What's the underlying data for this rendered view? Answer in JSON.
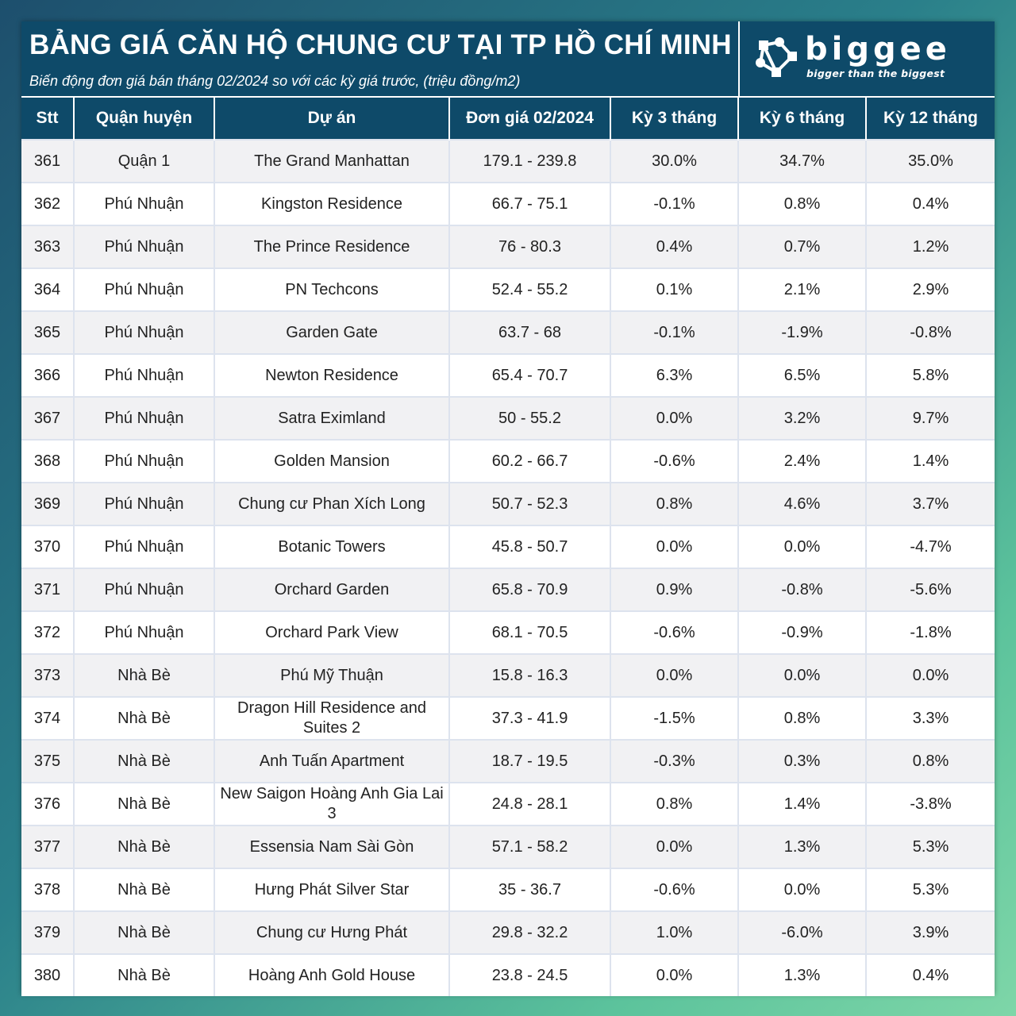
{
  "header": {
    "title": "BẢNG GIÁ CĂN HỘ CHUNG CƯ TẠI TP HỒ CHÍ MINH",
    "subtitle": "Biến động đơn giá bán tháng 02/2024 so với các kỳ giá trước, (triệu đồng/m2)"
  },
  "brand": {
    "name": "biggee",
    "tagline": "bigger than the biggest",
    "logo_icon": "network-nodes-icon"
  },
  "colors": {
    "header_bg": "#0e4a69",
    "positive": "#1aa34a",
    "negative": "#d0141a",
    "zero": "#8c8c8c"
  },
  "table": {
    "columns": [
      "Stt",
      "Quận huyện",
      "Dự án",
      "Đơn giá 02/2024",
      "Kỳ 3 tháng",
      "Kỳ 6 tháng",
      "Kỳ 12 tháng"
    ],
    "rows": [
      [
        "361",
        "Quận 1",
        "The Grand Manhattan",
        "179.1 - 239.8",
        "30.0%",
        "34.7%",
        "35.0%"
      ],
      [
        "362",
        "Phú Nhuận",
        "Kingston Residence",
        "66.7 - 75.1",
        "-0.1%",
        "0.8%",
        "0.4%"
      ],
      [
        "363",
        "Phú Nhuận",
        "The Prince Residence",
        "76 - 80.3",
        "0.4%",
        "0.7%",
        "1.2%"
      ],
      [
        "364",
        "Phú Nhuận",
        "PN Techcons",
        "52.4 - 55.2",
        "0.1%",
        "2.1%",
        "2.9%"
      ],
      [
        "365",
        "Phú Nhuận",
        "Garden Gate",
        "63.7 - 68",
        "-0.1%",
        "-1.9%",
        "-0.8%"
      ],
      [
        "366",
        "Phú Nhuận",
        "Newton Residence",
        "65.4 - 70.7",
        "6.3%",
        "6.5%",
        "5.8%"
      ],
      [
        "367",
        "Phú Nhuận",
        "Satra Eximland",
        "50 - 55.2",
        "0.0%",
        "3.2%",
        "9.7%"
      ],
      [
        "368",
        "Phú Nhuận",
        "Golden Mansion",
        "60.2 - 66.7",
        "-0.6%",
        "2.4%",
        "1.4%"
      ],
      [
        "369",
        "Phú Nhuận",
        "Chung cư Phan Xích Long",
        "50.7 - 52.3",
        "0.8%",
        "4.6%",
        "3.7%"
      ],
      [
        "370",
        "Phú Nhuận",
        "Botanic Towers",
        "45.8 - 50.7",
        "0.0%",
        "0.0%",
        "-4.7%"
      ],
      [
        "371",
        "Phú Nhuận",
        "Orchard Garden",
        "65.8 - 70.9",
        "0.9%",
        "-0.8%",
        "-5.6%"
      ],
      [
        "372",
        "Phú Nhuận",
        "Orchard Park View",
        "68.1 - 70.5",
        "-0.6%",
        "-0.9%",
        "-1.8%"
      ],
      [
        "373",
        "Nhà Bè",
        "Phú Mỹ Thuận",
        "15.8 - 16.3",
        "0.0%",
        "0.0%",
        "0.0%"
      ],
      [
        "374",
        "Nhà Bè",
        "Dragon Hill Residence and Suites 2",
        "37.3 - 41.9",
        "-1.5%",
        "0.8%",
        "3.3%"
      ],
      [
        "375",
        "Nhà Bè",
        "Anh Tuấn Apartment",
        "18.7 - 19.5",
        "-0.3%",
        "0.3%",
        "0.8%"
      ],
      [
        "376",
        "Nhà Bè",
        "New Saigon Hoàng Anh Gia Lai 3",
        "24.8 - 28.1",
        "0.8%",
        "1.4%",
        "-3.8%"
      ],
      [
        "377",
        "Nhà Bè",
        "Essensia Nam Sài Gòn",
        "57.1 - 58.2",
        "0.0%",
        "1.3%",
        "5.3%"
      ],
      [
        "378",
        "Nhà Bè",
        "Hưng Phát Silver Star",
        "35 - 36.7",
        "-0.6%",
        "0.0%",
        "5.3%"
      ],
      [
        "379",
        "Nhà Bè",
        "Chung cư Hưng Phát",
        "29.8 - 32.2",
        "1.0%",
        "-6.0%",
        "3.9%"
      ],
      [
        "380",
        "Nhà Bè",
        "Hoàng Anh Gold House",
        "23.8 - 24.5",
        "0.0%",
        "1.3%",
        "0.4%"
      ]
    ]
  }
}
